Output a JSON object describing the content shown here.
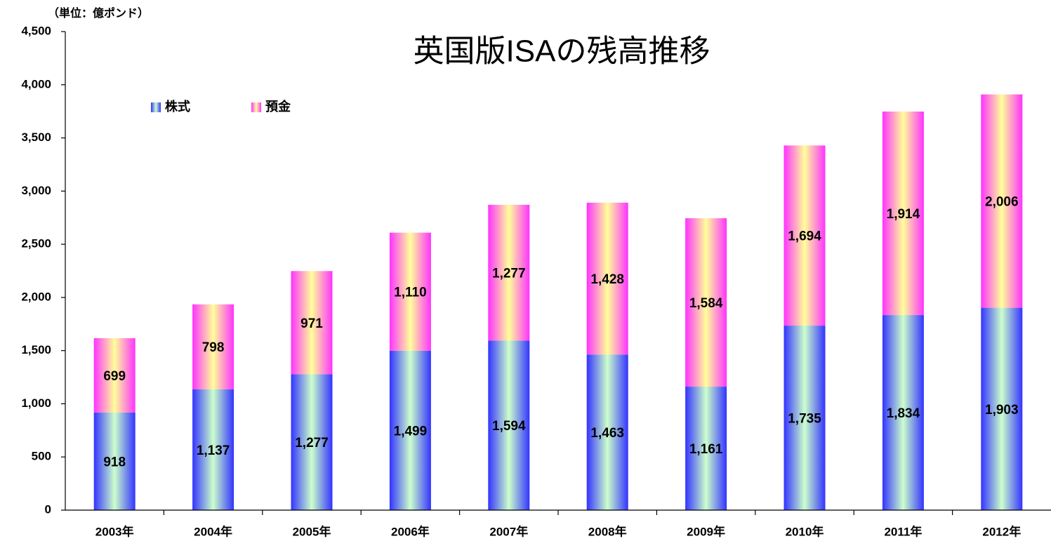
{
  "chart_data": {
    "type": "stacked_bar",
    "title": "英国版ISAの残高推移",
    "unit_label": "（単位：億ポンド）",
    "categories": [
      "2003年",
      "2004年",
      "2005年",
      "2006年",
      "2007年",
      "2008年",
      "2009年",
      "2010年",
      "2011年",
      "2012年"
    ],
    "series": [
      {
        "name": "株式",
        "color": "#3333ff",
        "values": [
          918,
          1137,
          1277,
          1499,
          1594,
          1463,
          1161,
          1735,
          1834,
          1903
        ],
        "value_labels": [
          "918",
          "1,137",
          "1,277",
          "1,499",
          "1,594",
          "1,463",
          "1,161",
          "1,735",
          "1,834",
          "1,903"
        ]
      },
      {
        "name": "預金",
        "color": "#ff33ff",
        "values": [
          699,
          798,
          971,
          1110,
          1277,
          1428,
          1584,
          1694,
          1914,
          2006
        ],
        "value_labels": [
          "699",
          "798",
          "971",
          "1,110",
          "1,277",
          "1,428",
          "1,584",
          "1,694",
          "1,914",
          "2,006"
        ]
      }
    ],
    "ylim": [
      0,
      4500
    ],
    "yticks": [
      0,
      500,
      {
        "value": 1000,
        "label": "1,000"
      },
      {
        "value": 1500,
        "label": "1,500"
      },
      {
        "value": 2000,
        "label": "2,000"
      },
      {
        "value": 2500,
        "label": "2,500"
      },
      {
        "value": 3000,
        "label": "3,000"
      },
      {
        "value": 3500,
        "label": "3,500"
      },
      {
        "value": 4000,
        "label": "4,000"
      },
      {
        "value": 4500,
        "label": "4,500"
      }
    ],
    "grid": false,
    "legend": "top-left"
  }
}
